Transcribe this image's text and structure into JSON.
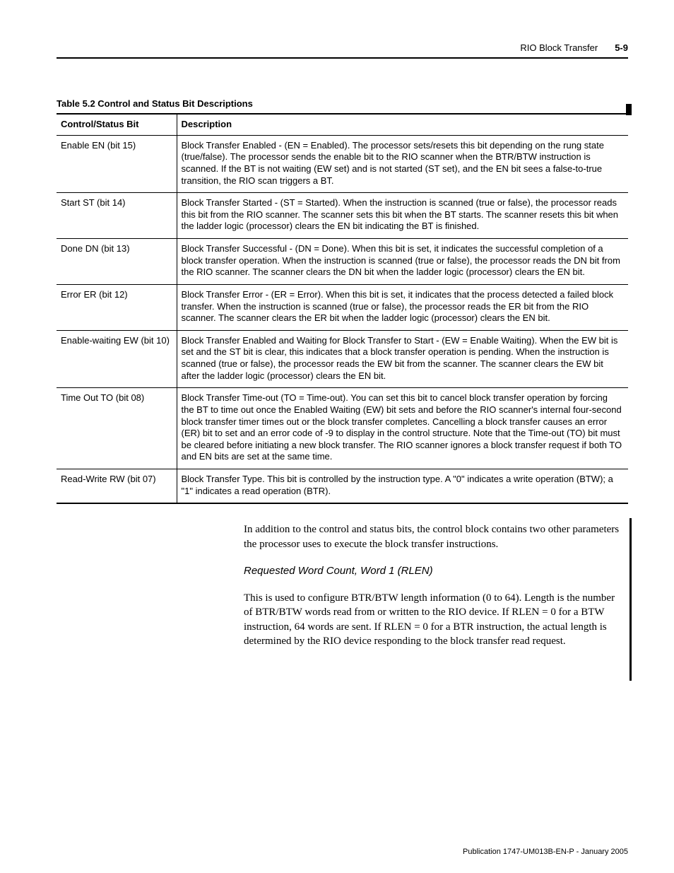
{
  "header": {
    "title": "RIO Block Transfer",
    "page": "5-9"
  },
  "table": {
    "caption": "Table 5.2 Control and Status Bit Descriptions",
    "columns": [
      "Control/Status Bit",
      "Description"
    ],
    "rows": [
      {
        "bit": "Enable EN (bit 15)",
        "desc": "Block Transfer Enabled - (EN = Enabled). The processor sets/resets this bit depending on the rung state (true/false). The processor sends the enable bit to the RIO scanner when the BTR/BTW instruction is scanned. If the BT is not waiting (EW set) and is not started (ST set), and the EN bit sees a false-to-true transition, the RIO scan triggers a BT."
      },
      {
        "bit": "Start ST (bit 14)",
        "desc": "Block Transfer Started - (ST = Started). When the instruction is scanned (true or false), the processor reads this bit from the RIO scanner. The scanner sets this bit when the BT starts. The scanner resets this bit when the ladder logic (processor) clears the EN bit indicating the BT is finished."
      },
      {
        "bit": "Done DN (bit 13)",
        "desc": "Block Transfer Successful - (DN = Done). When this bit is set, it indicates the successful completion of a block transfer operation. When the instruction is scanned (true or false), the processor reads the DN bit from the RIO scanner. The scanner clears the DN bit when the ladder logic (processor) clears the EN bit."
      },
      {
        "bit": "Error ER (bit 12)",
        "desc": "Block Transfer Error - (ER = Error). When this bit is set, it indicates that the process detected a failed block transfer. When the instruction is scanned (true or false), the processor reads the ER bit from the RIO scanner. The scanner clears the ER bit when the ladder logic (processor) clears the EN bit."
      },
      {
        "bit": "Enable-waiting EW (bit 10)",
        "desc": "Block Transfer Enabled and Waiting for Block Transfer to Start - (EW = Enable Waiting). When the EW bit is set and the ST bit is clear, this indicates that a block transfer operation is pending. When the instruction is scanned (true or false), the processor reads the EW bit from the scanner. The scanner clears the EW bit after the ladder logic (processor) clears the EN bit."
      },
      {
        "bit": "Time Out TO (bit 08)",
        "desc": "Block Transfer Time-out (TO = Time-out). You can set this bit to cancel block transfer operation by forcing the BT to time out once the Enabled Waiting (EW) bit sets and before the RIO scanner's internal four-second block transfer timer times out or the block transfer completes. Cancelling a block transfer causes an error (ER) bit to set and an error code of -9 to display in the control structure. Note that the Time-out (TO) bit must be cleared before initiating a new block transfer. The RIO scanner ignores a block transfer request if both TO and EN bits are set at the same time."
      },
      {
        "bit": "Read-Write RW (bit 07)",
        "desc": "Block Transfer Type. This bit is controlled by the instruction type. A \"0\" indicates a write operation (BTW); a \"1\" indicates a read operation (BTR)."
      }
    ]
  },
  "body": {
    "para1": "In addition to the control and status bits, the control block contains two other parameters the processor uses to execute the block transfer instructions.",
    "subhead": "Requested Word Count, Word 1 (RLEN)",
    "para2": "This is used to configure BTR/BTW length information (0 to 64). Length is the number of BTR/BTW words read from or written to the RIO device. If RLEN = 0 for a BTW instruction, 64 words are sent. If RLEN = 0 for a BTR instruction, the actual length is determined by the RIO device responding to the block transfer read request."
  },
  "footer": "Publication 1747-UM013B-EN-P - January 2005"
}
